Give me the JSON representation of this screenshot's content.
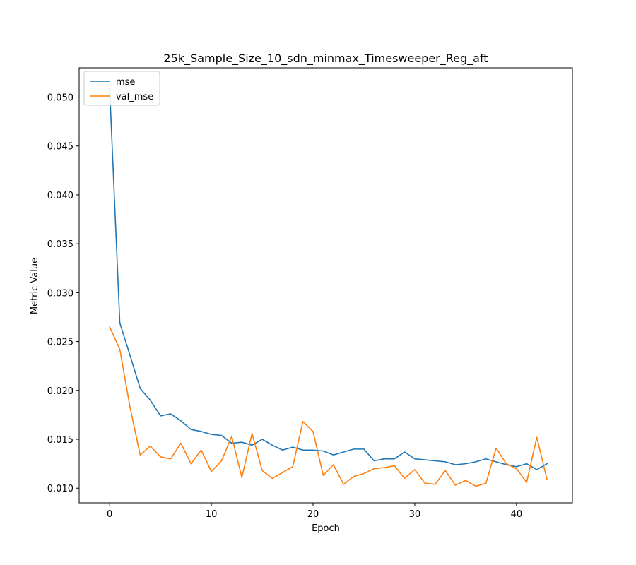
{
  "chart_data": {
    "type": "line",
    "title": "25k_Sample_Size_10_sdn_minmax_Timesweeper_Reg_aft",
    "xlabel": "Epoch",
    "ylabel": "Metric Value",
    "xlim": [
      -3.0,
      45.5
    ],
    "ylim": [
      0.0085,
      0.053
    ],
    "xticks": [
      0,
      10,
      20,
      30,
      40
    ],
    "yticks": [
      0.01,
      0.015,
      0.02,
      0.025,
      0.03,
      0.035,
      0.04,
      0.045,
      0.05
    ],
    "ytick_labels": [
      "0.010",
      "0.015",
      "0.020",
      "0.025",
      "0.030",
      "0.035",
      "0.040",
      "0.045",
      "0.050"
    ],
    "xtick_labels": [
      "0",
      "10",
      "20",
      "30",
      "40"
    ],
    "grid": false,
    "legend_position": "top-left",
    "x": [
      0,
      1,
      2,
      3,
      4,
      5,
      6,
      7,
      8,
      9,
      10,
      11,
      12,
      13,
      14,
      15,
      16,
      17,
      18,
      19,
      20,
      21,
      22,
      23,
      24,
      25,
      26,
      27,
      28,
      29,
      30,
      31,
      32,
      33,
      34,
      35,
      36,
      37,
      38,
      39,
      40,
      41,
      42,
      43
    ],
    "series": [
      {
        "name": "mse",
        "color": "#1f77b4",
        "values": [
          0.0509,
          0.0269,
          0.0236,
          0.0202,
          0.019,
          0.0174,
          0.0176,
          0.0169,
          0.016,
          0.0158,
          0.0155,
          0.0154,
          0.0146,
          0.0147,
          0.0144,
          0.015,
          0.0144,
          0.0139,
          0.0142,
          0.0139,
          0.0139,
          0.0138,
          0.0134,
          0.0137,
          0.014,
          0.014,
          0.0128,
          0.013,
          0.013,
          0.0137,
          0.013,
          0.0129,
          0.0128,
          0.0127,
          0.0124,
          0.0125,
          0.0127,
          0.013,
          0.0127,
          0.0124,
          0.0122,
          0.0125,
          0.0119,
          0.0125
        ]
      },
      {
        "name": "val_mse",
        "color": "#ff7f0e",
        "values": [
          0.0265,
          0.0242,
          0.0183,
          0.0134,
          0.0143,
          0.0132,
          0.013,
          0.0146,
          0.0125,
          0.0139,
          0.0117,
          0.0128,
          0.0153,
          0.0111,
          0.0156,
          0.0118,
          0.011,
          0.0116,
          0.0122,
          0.0168,
          0.0158,
          0.0113,
          0.0124,
          0.0104,
          0.0112,
          0.0115,
          0.012,
          0.0121,
          0.0123,
          0.011,
          0.0119,
          0.0105,
          0.0104,
          0.0118,
          0.0103,
          0.0108,
          0.0102,
          0.0105,
          0.0141,
          0.0125,
          0.012,
          0.0106,
          0.0152,
          0.0109
        ]
      }
    ]
  }
}
